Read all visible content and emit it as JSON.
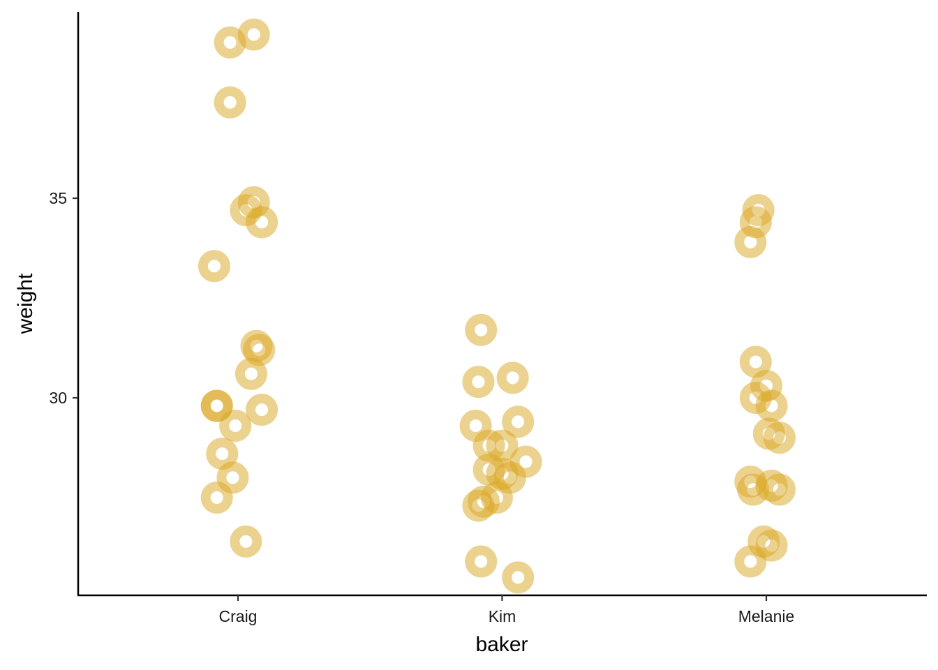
{
  "chart_data": {
    "type": "scatter",
    "title": "",
    "xlabel": "baker",
    "ylabel": "weight",
    "categories": [
      "Craig",
      "Kim",
      "Melanie"
    ],
    "yticks": [
      30,
      35
    ],
    "ylim": [
      24.6,
      39.3
    ],
    "grid": false,
    "point_color": "#DAA520",
    "points": [
      {
        "x": "Craig",
        "jitter": -0.03,
        "y": 38.9
      },
      {
        "x": "Craig",
        "jitter": 0.06,
        "y": 39.1
      },
      {
        "x": "Craig",
        "jitter": -0.03,
        "y": 37.4
      },
      {
        "x": "Craig",
        "jitter": 0.06,
        "y": 34.9
      },
      {
        "x": "Craig",
        "jitter": 0.03,
        "y": 34.7
      },
      {
        "x": "Craig",
        "jitter": 0.09,
        "y": 34.4
      },
      {
        "x": "Craig",
        "jitter": -0.09,
        "y": 33.3
      },
      {
        "x": "Craig",
        "jitter": 0.07,
        "y": 31.3
      },
      {
        "x": "Craig",
        "jitter": 0.08,
        "y": 31.2
      },
      {
        "x": "Craig",
        "jitter": 0.05,
        "y": 30.6
      },
      {
        "x": "Craig",
        "jitter": -0.08,
        "y": 29.8
      },
      {
        "x": "Craig",
        "jitter": -0.08,
        "y": 29.8
      },
      {
        "x": "Craig",
        "jitter": 0.09,
        "y": 29.7
      },
      {
        "x": "Craig",
        "jitter": -0.01,
        "y": 29.3
      },
      {
        "x": "Craig",
        "jitter": -0.06,
        "y": 28.6
      },
      {
        "x": "Craig",
        "jitter": -0.02,
        "y": 28.0
      },
      {
        "x": "Craig",
        "jitter": -0.08,
        "y": 27.5
      },
      {
        "x": "Craig",
        "jitter": 0.03,
        "y": 26.4
      },
      {
        "x": "Kim",
        "jitter": -0.08,
        "y": 31.7
      },
      {
        "x": "Kim",
        "jitter": 0.04,
        "y": 30.5
      },
      {
        "x": "Kim",
        "jitter": -0.09,
        "y": 30.4
      },
      {
        "x": "Kim",
        "jitter": 0.06,
        "y": 29.4
      },
      {
        "x": "Kim",
        "jitter": -0.1,
        "y": 29.3
      },
      {
        "x": "Kim",
        "jitter": -0.05,
        "y": 28.8
      },
      {
        "x": "Kim",
        "jitter": 0.0,
        "y": 28.8
      },
      {
        "x": "Kim",
        "jitter": 0.09,
        "y": 28.4
      },
      {
        "x": "Kim",
        "jitter": -0.05,
        "y": 28.2
      },
      {
        "x": "Kim",
        "jitter": 0.0,
        "y": 28.1
      },
      {
        "x": "Kim",
        "jitter": 0.03,
        "y": 28.0
      },
      {
        "x": "Kim",
        "jitter": -0.02,
        "y": 27.5
      },
      {
        "x": "Kim",
        "jitter": -0.09,
        "y": 27.3
      },
      {
        "x": "Kim",
        "jitter": -0.07,
        "y": 27.4
      },
      {
        "x": "Kim",
        "jitter": -0.08,
        "y": 25.9
      },
      {
        "x": "Kim",
        "jitter": 0.06,
        "y": 25.5
      },
      {
        "x": "Melanie",
        "jitter": -0.03,
        "y": 34.7
      },
      {
        "x": "Melanie",
        "jitter": -0.04,
        "y": 34.4
      },
      {
        "x": "Melanie",
        "jitter": -0.06,
        "y": 33.9
      },
      {
        "x": "Melanie",
        "jitter": -0.04,
        "y": 30.9
      },
      {
        "x": "Melanie",
        "jitter": 0.0,
        "y": 30.3
      },
      {
        "x": "Melanie",
        "jitter": -0.04,
        "y": 30.0
      },
      {
        "x": "Melanie",
        "jitter": 0.02,
        "y": 29.8
      },
      {
        "x": "Melanie",
        "jitter": 0.01,
        "y": 29.1
      },
      {
        "x": "Melanie",
        "jitter": 0.05,
        "y": 29.0
      },
      {
        "x": "Melanie",
        "jitter": -0.06,
        "y": 27.9
      },
      {
        "x": "Melanie",
        "jitter": -0.05,
        "y": 27.7
      },
      {
        "x": "Melanie",
        "jitter": 0.02,
        "y": 27.8
      },
      {
        "x": "Melanie",
        "jitter": 0.05,
        "y": 27.7
      },
      {
        "x": "Melanie",
        "jitter": -0.01,
        "y": 26.4
      },
      {
        "x": "Melanie",
        "jitter": 0.02,
        "y": 26.3
      },
      {
        "x": "Melanie",
        "jitter": -0.06,
        "y": 25.9
      }
    ]
  }
}
